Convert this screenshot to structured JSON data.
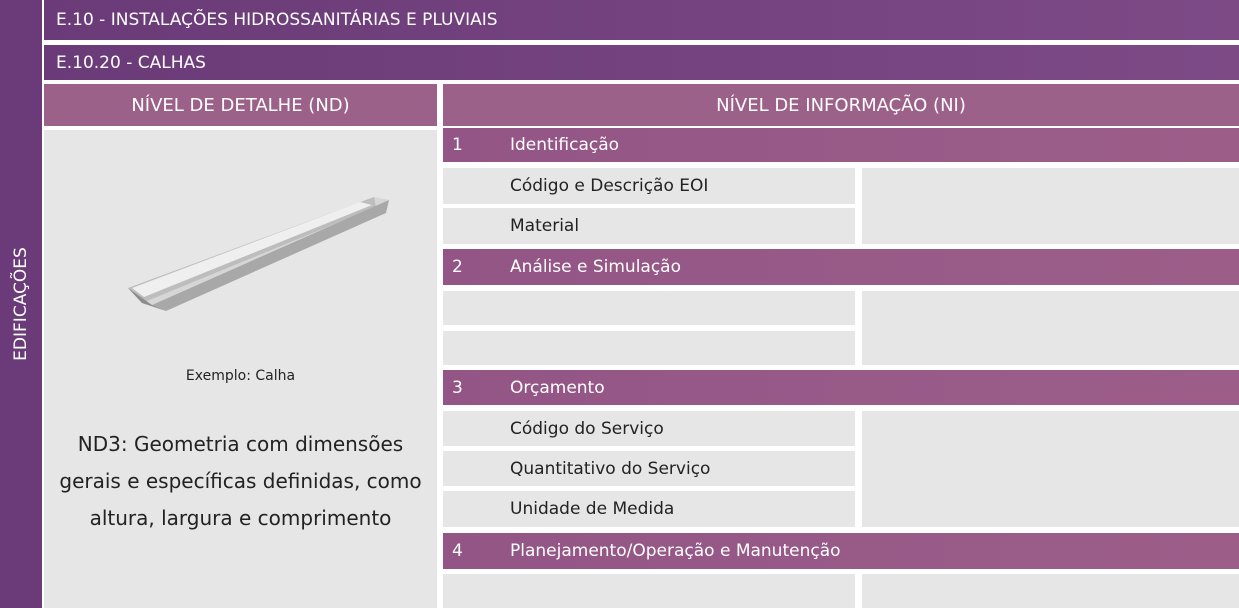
{
  "sidebar": {
    "label": "EDIFICAÇÕES"
  },
  "header": {
    "title": "E.10 - INSTALAÇÕES HIDROSSANITÁRIAS E PLUVIAIS",
    "subtitle": "E.10.20 - CALHAS"
  },
  "detail": {
    "heading": "NÍVEL DE DETALHE (ND)",
    "caption": "Exemplo: Calha",
    "description": [
      "ND3: Geometria com dimensões",
      "gerais e específicas definidas, como",
      "altura, largura e comprimento"
    ]
  },
  "information": {
    "heading": "NÍVEL DE INFORMAÇÃO (NI)",
    "sections": [
      {
        "number": "1",
        "title": "Identificação",
        "items": [
          "Código e Descrição EOI",
          "Material"
        ]
      },
      {
        "number": "2",
        "title": "Análise e Simulação"
      },
      {
        "number": "3",
        "title": "Orçamento",
        "items": [
          "Código do Serviço",
          "Quantitativo do Serviço",
          "Unidade de Medida"
        ]
      },
      {
        "number": "4",
        "title": "Planejamento/Operação e Manutenção"
      }
    ]
  }
}
